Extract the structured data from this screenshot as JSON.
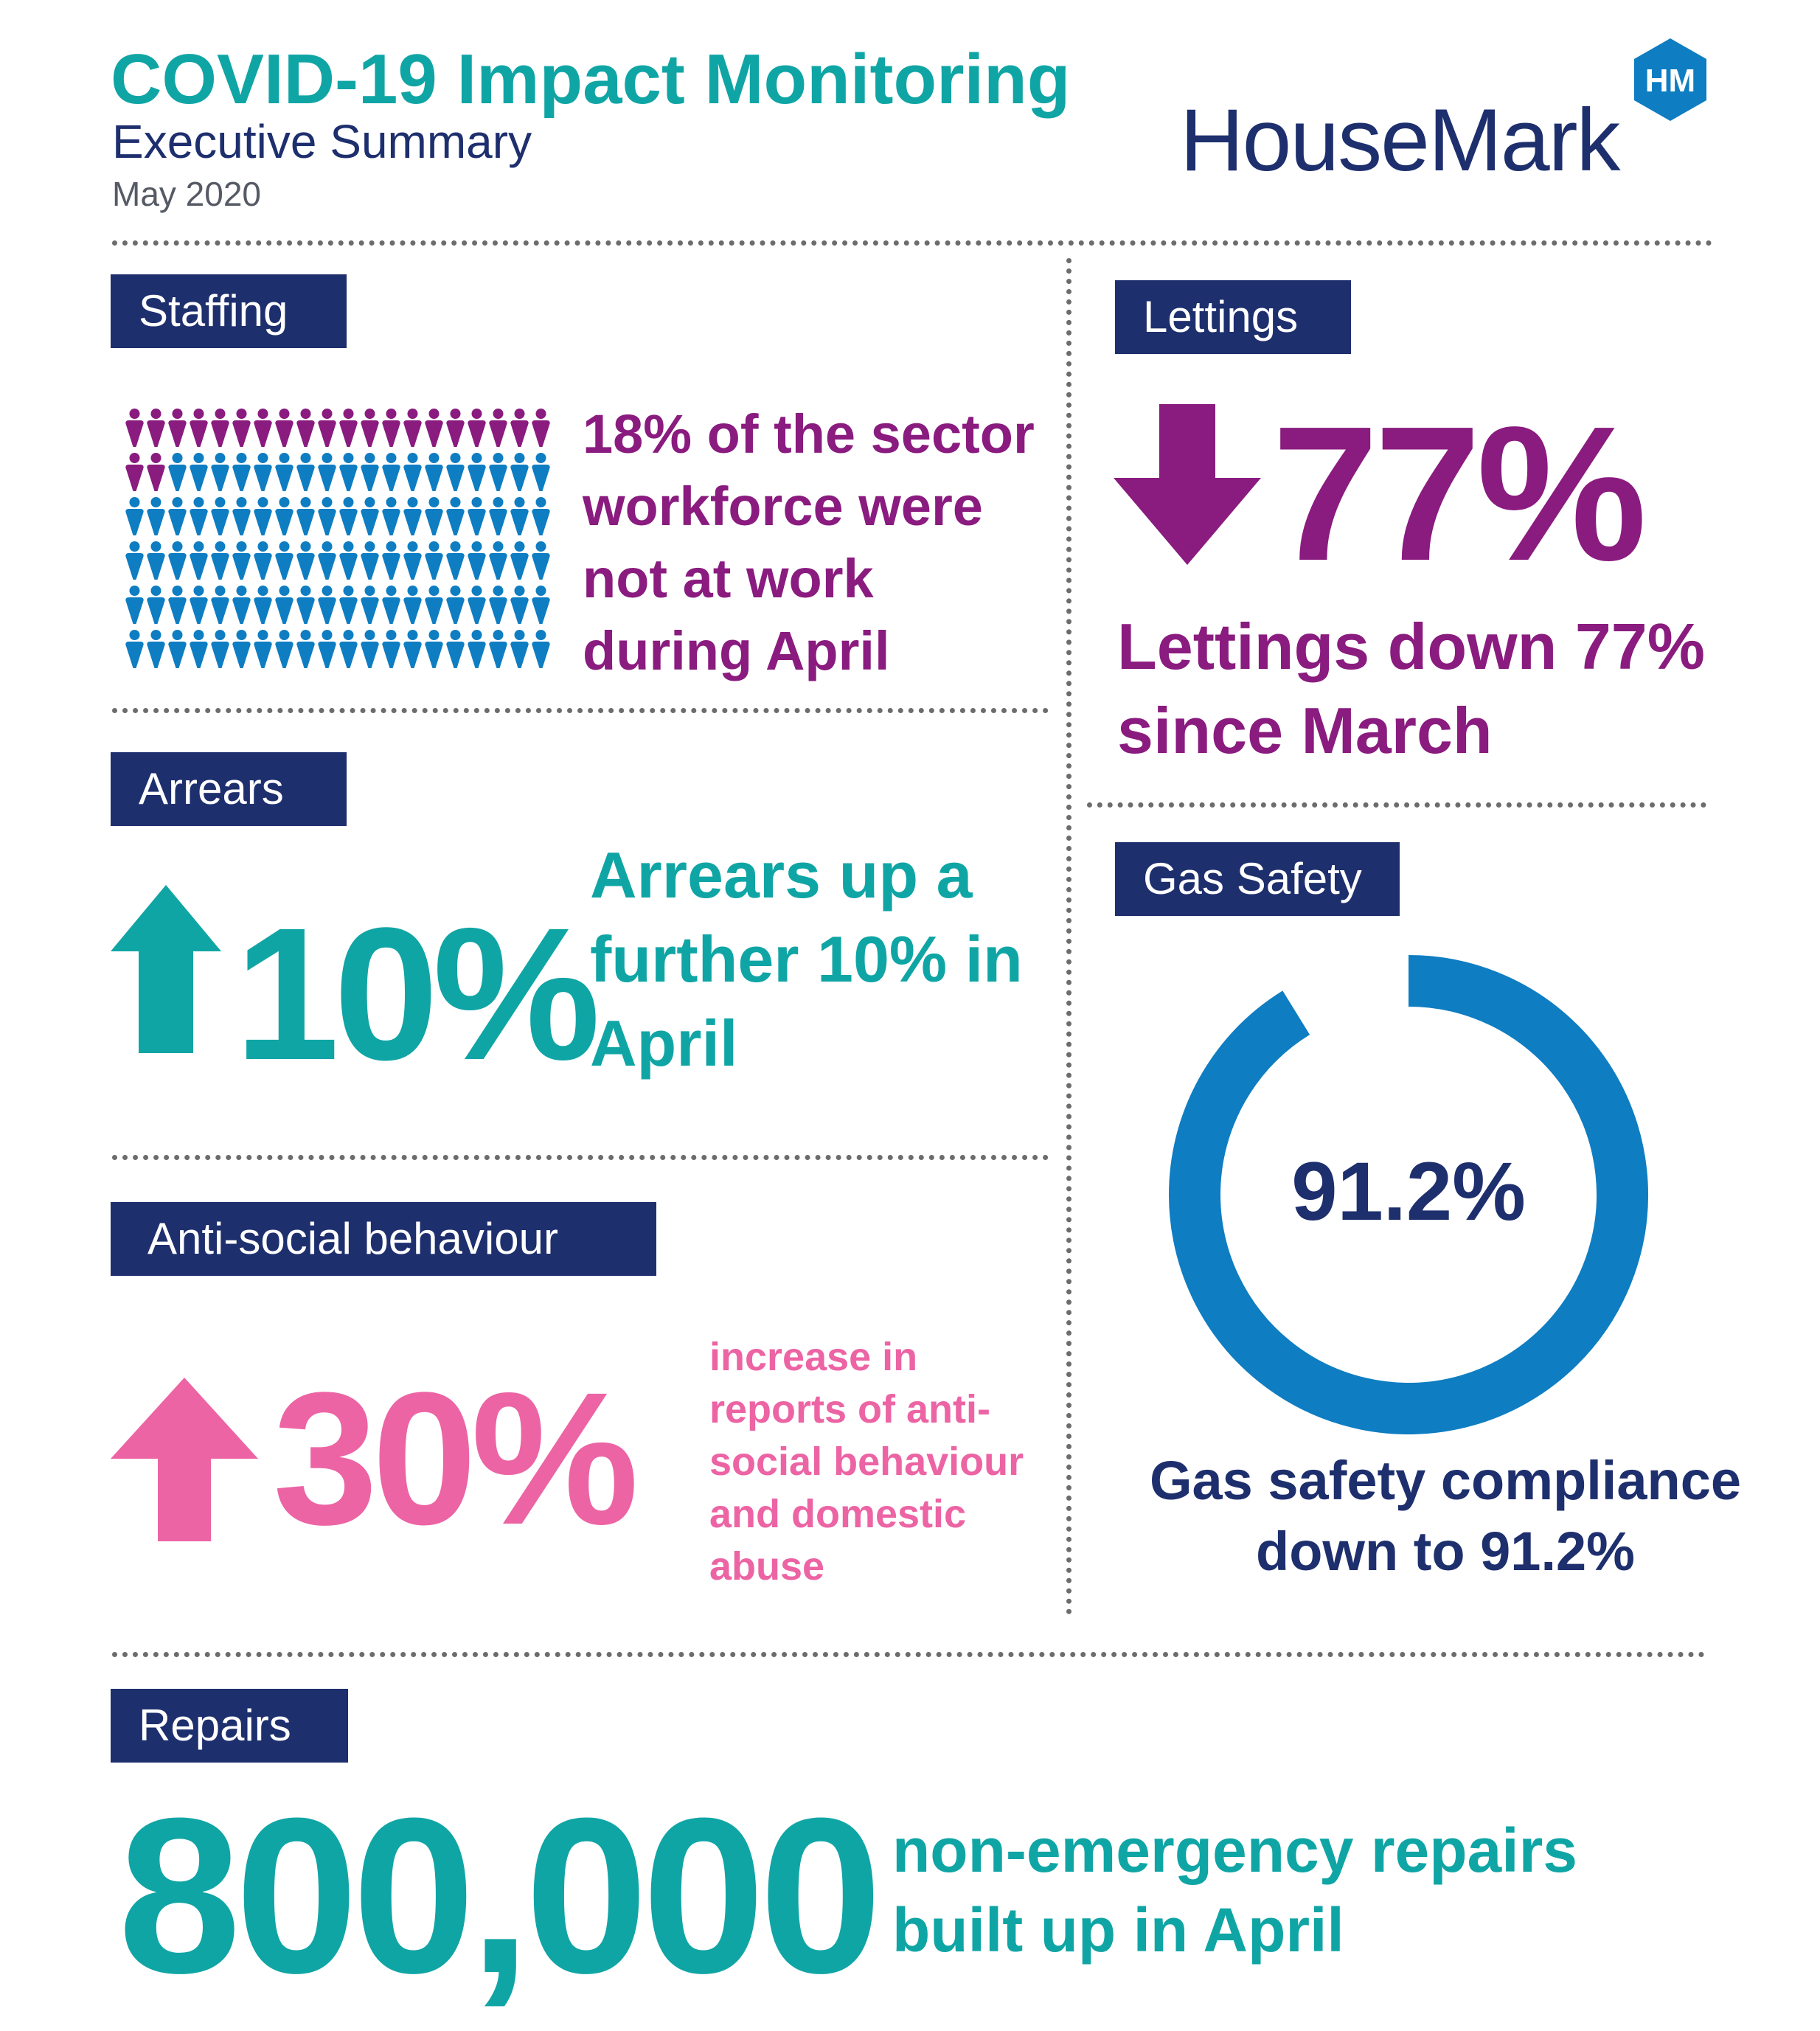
{
  "header": {
    "title": "COVID-19 Impact Monitoring",
    "subtitle": "Executive Summary",
    "date": "May 2020",
    "brand": "HouseMark",
    "brand_mark": "HM"
  },
  "colors": {
    "navy": "#1e2f6e",
    "teal": "#10a5a5",
    "purple": "#8a1b7f",
    "pink": "#ec64a4",
    "blue": "#0e7dc2"
  },
  "staffing": {
    "label": "Staffing",
    "statement": "18% of the sector workforce were not at work during April",
    "share_not_at_work": 0.18,
    "icon": "people-pictogram"
  },
  "lettings": {
    "label": "Lettings",
    "value": "77%",
    "statement": "Lettings down 77% since March",
    "icon": "arrow-down-icon"
  },
  "arrears": {
    "label": "Arrears",
    "value": "10%",
    "statement": "Arrears up a further 10% in April",
    "icon": "arrow-up-icon"
  },
  "gas_safety": {
    "label": "Gas Safety",
    "value": "91.2%",
    "compliance_fraction": 0.912,
    "statement": "Gas safety compliance down to 91.2%"
  },
  "asb": {
    "label": "Anti-social behaviour",
    "value": "30%",
    "statement": "increase in reports of anti-social behaviour and domestic abuse",
    "icon": "arrow-up-icon"
  },
  "repairs": {
    "label": "Repairs",
    "value": "800,000",
    "statement": "non-emergency repairs built up in April"
  }
}
